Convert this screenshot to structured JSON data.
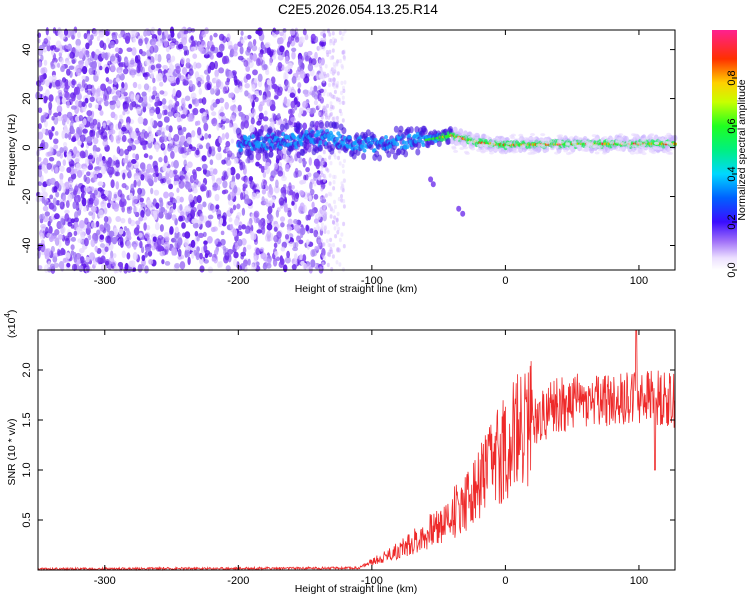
{
  "title": "C2E5.2026.054.13.25.R14",
  "chart_data": [
    {
      "type": "heatmap",
      "xlabel": "Height of straight line (km)",
      "ylabel": "Frequency (Hz)",
      "xlim": [
        -350,
        127
      ],
      "ylim": [
        -50,
        48
      ],
      "xticks": [
        -300,
        -200,
        -100,
        0,
        100
      ],
      "yticks": [
        -40,
        -20,
        0,
        20,
        40
      ],
      "grid": false,
      "colorbar": {
        "label": "Normalized spectral amplitude",
        "range": [
          0,
          1
        ],
        "ticks": [
          "0.0",
          "0.2",
          "0.4",
          "0.6",
          "0.8"
        ],
        "colormap": "rainbow"
      },
      "ridge": {
        "description_points": [
          {
            "x": -195,
            "y": 2
          },
          {
            "x": -130,
            "y": 4
          },
          {
            "x": -100,
            "y": 1
          },
          {
            "x": -80,
            "y": 2
          },
          {
            "x": -60,
            "y": 3
          },
          {
            "x": -40,
            "y": 5
          },
          {
            "x": -20,
            "y": 2
          },
          {
            "x": 0,
            "y": 1
          },
          {
            "x": 50,
            "y": 1.5
          },
          {
            "x": 127,
            "y": 1.5
          }
        ]
      }
    },
    {
      "type": "line",
      "xlabel": "Height of straight line (km)",
      "ylabel": "SNR (10 * v/v)",
      "multiplier": "(x10",
      "multiplier_exp": "4",
      "multiplier_close": ")",
      "xlim": [
        -350,
        127
      ],
      "ylim": [
        0,
        2.4
      ],
      "xticks": [
        -300,
        -200,
        -100,
        0,
        100
      ],
      "yticks": [
        "0.5",
        "1.0",
        "1.5",
        "2.0"
      ],
      "series": [
        {
          "color": "#ee2a2a",
          "envelope": [
            {
              "x": -350,
              "y": 0.01
            },
            {
              "x": -110,
              "y": 0.02
            },
            {
              "x": -100,
              "y": 0.08
            },
            {
              "x": -80,
              "y": 0.2
            },
            {
              "x": -60,
              "y": 0.35
            },
            {
              "x": -40,
              "y": 0.55
            },
            {
              "x": -20,
              "y": 0.85
            },
            {
              "x": 0,
              "y": 1.25
            },
            {
              "x": 20,
              "y": 1.5
            },
            {
              "x": 40,
              "y": 1.65
            },
            {
              "x": 60,
              "y": 1.7
            },
            {
              "x": 80,
              "y": 1.7
            },
            {
              "x": 100,
              "y": 1.75
            },
            {
              "x": 127,
              "y": 1.7
            }
          ],
          "peak": {
            "x": 98,
            "y": 2.4
          },
          "trough": {
            "x": 112,
            "y": 1.0
          }
        }
      ]
    }
  ]
}
